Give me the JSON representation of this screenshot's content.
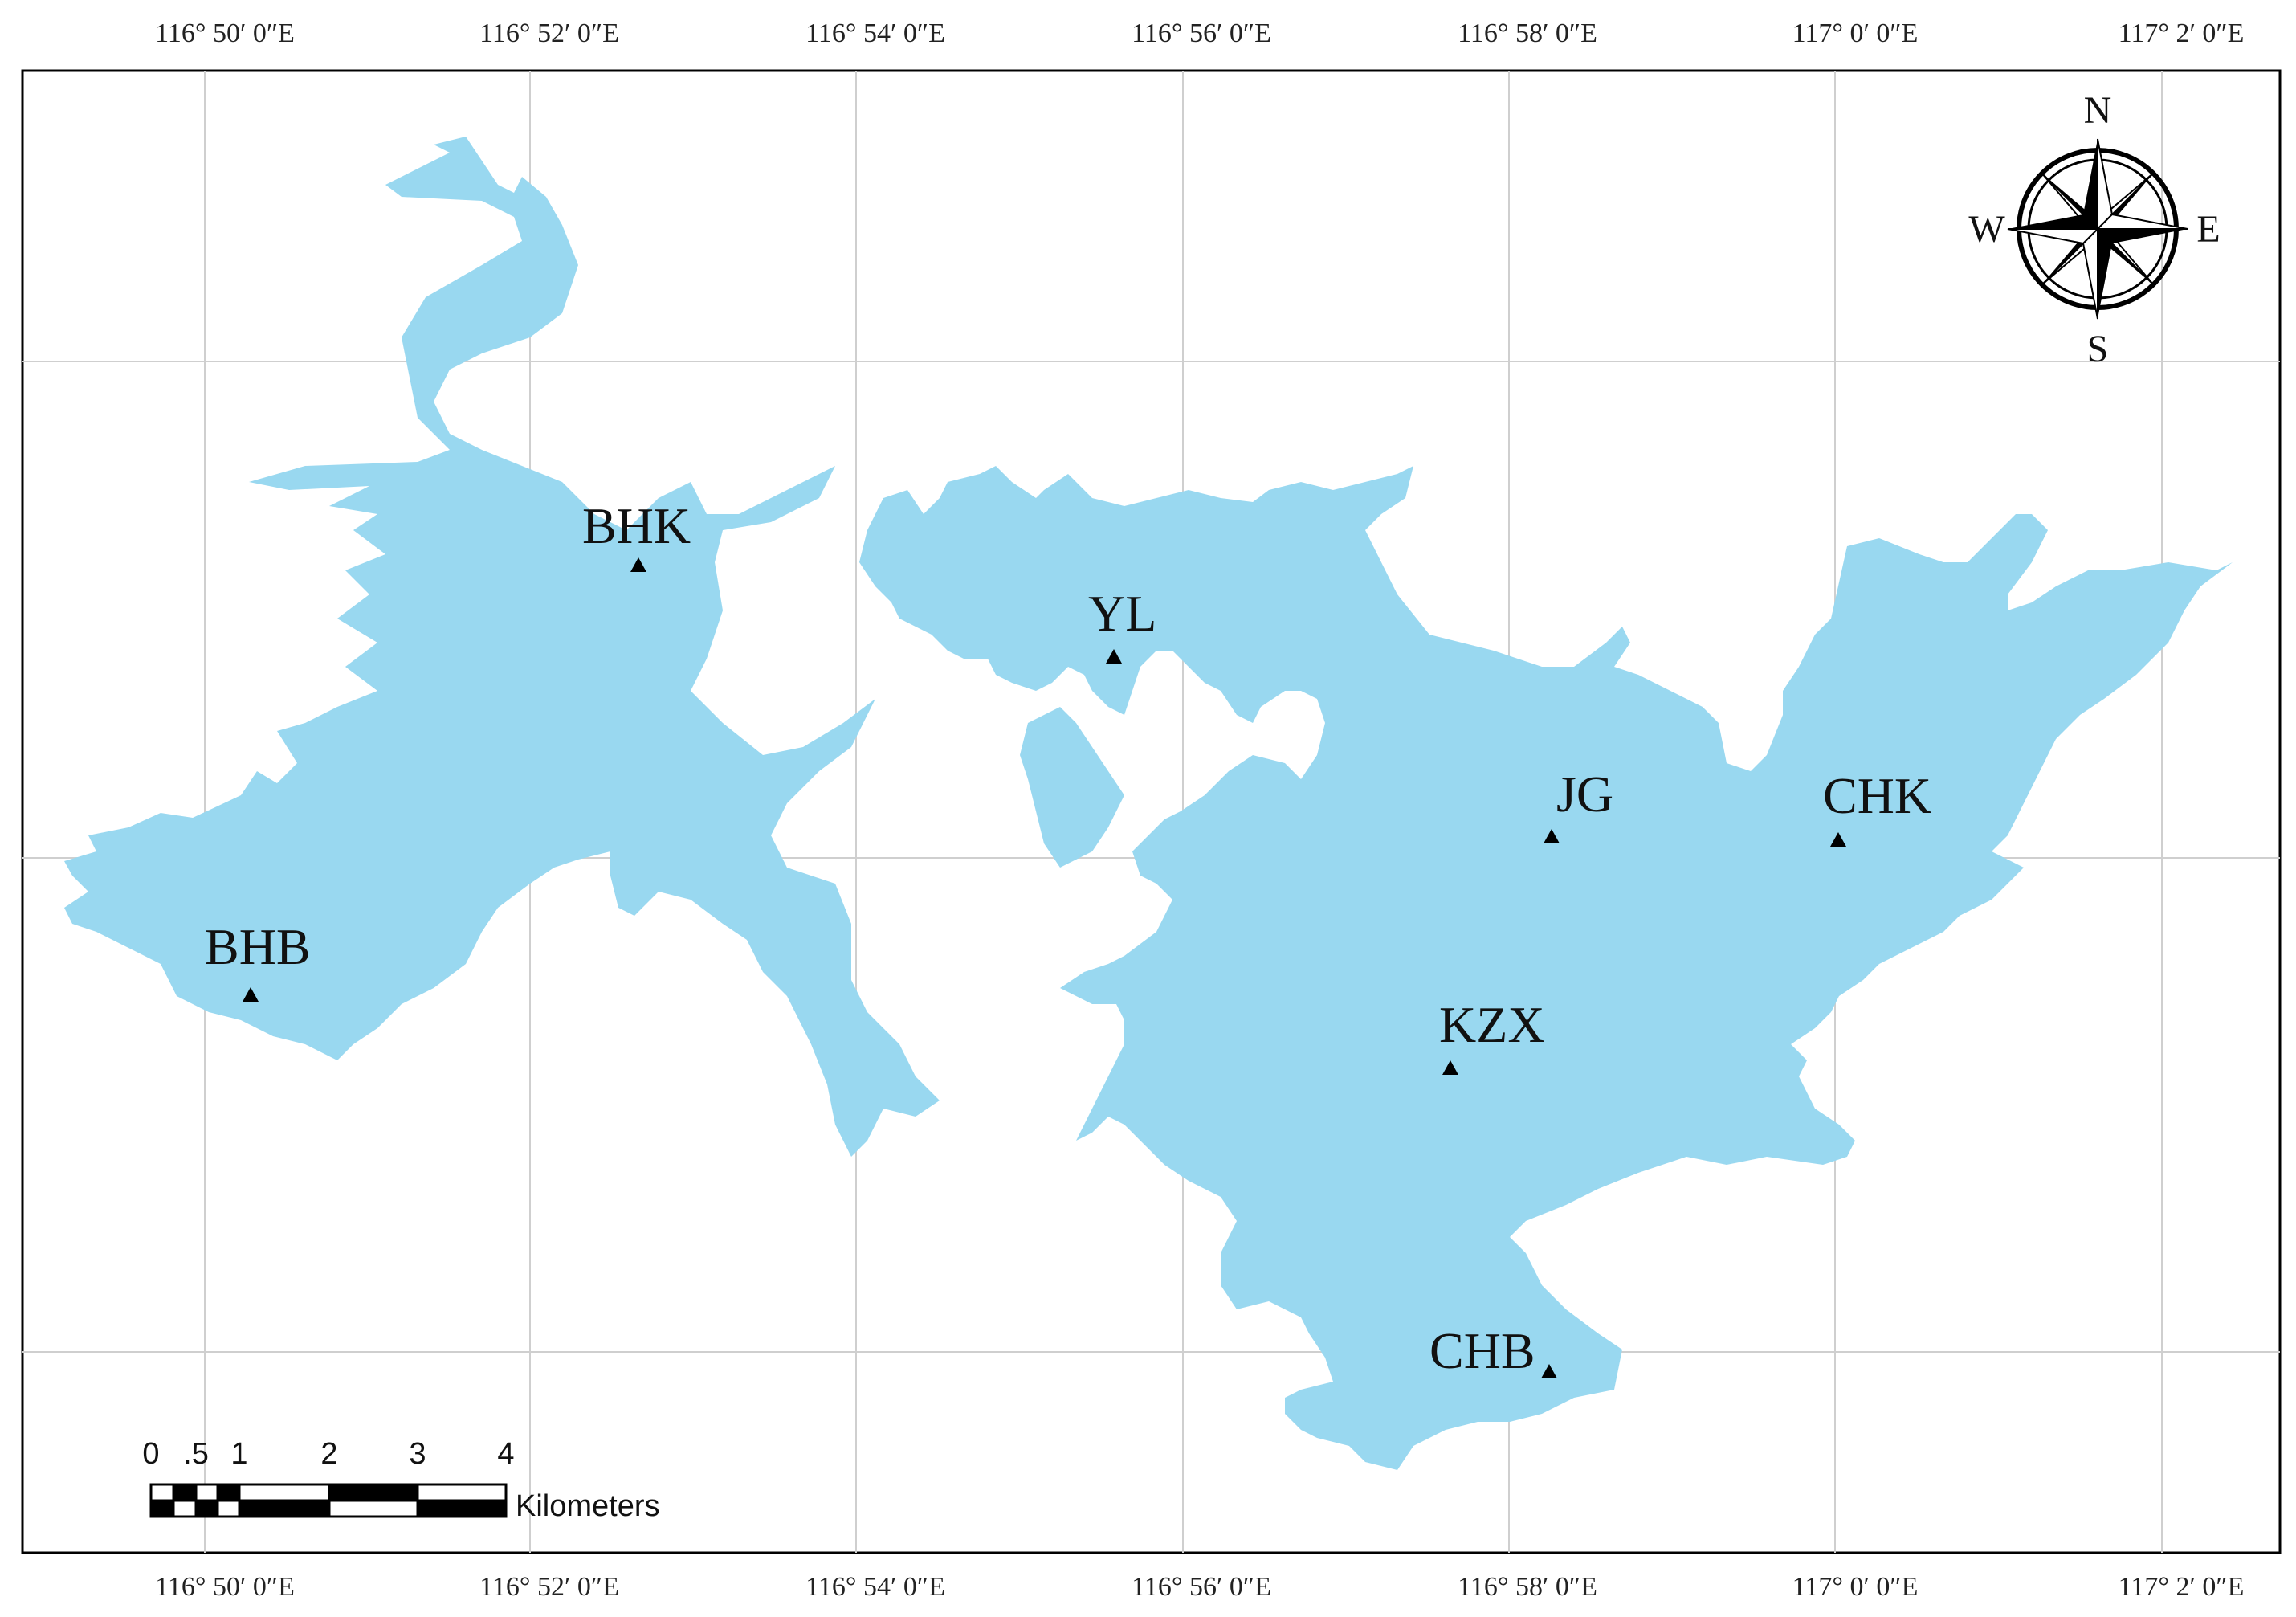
{
  "map": {
    "longitude_labels": [
      "116° 50′ 0″E",
      "116° 52′ 0″E",
      "116° 54′ 0″E",
      "116° 56′ 0″E",
      "116° 58′ 0″E",
      "117° 0′ 0″E",
      "117° 2′ 0″E"
    ],
    "stations": [
      {
        "id": "BHK",
        "label": "BHK"
      },
      {
        "id": "YL",
        "label": "YL"
      },
      {
        "id": "JG",
        "label": "JG"
      },
      {
        "id": "CHK",
        "label": "CHK"
      },
      {
        "id": "BHB",
        "label": "BHB"
      },
      {
        "id": "KZX",
        "label": "KZX"
      },
      {
        "id": "CHB",
        "label": "CHB"
      }
    ],
    "compass": {
      "north": "N",
      "south": "S",
      "east": "E",
      "west": "W"
    },
    "scale_bar": {
      "ticks": [
        "0",
        ".5",
        "1",
        "2",
        "3",
        "4"
      ],
      "unit": "Kilometers"
    },
    "colors": {
      "water": "#99d8f0",
      "grid": "#cfcfcf",
      "frame": "#000000",
      "marker": "#000000"
    }
  }
}
